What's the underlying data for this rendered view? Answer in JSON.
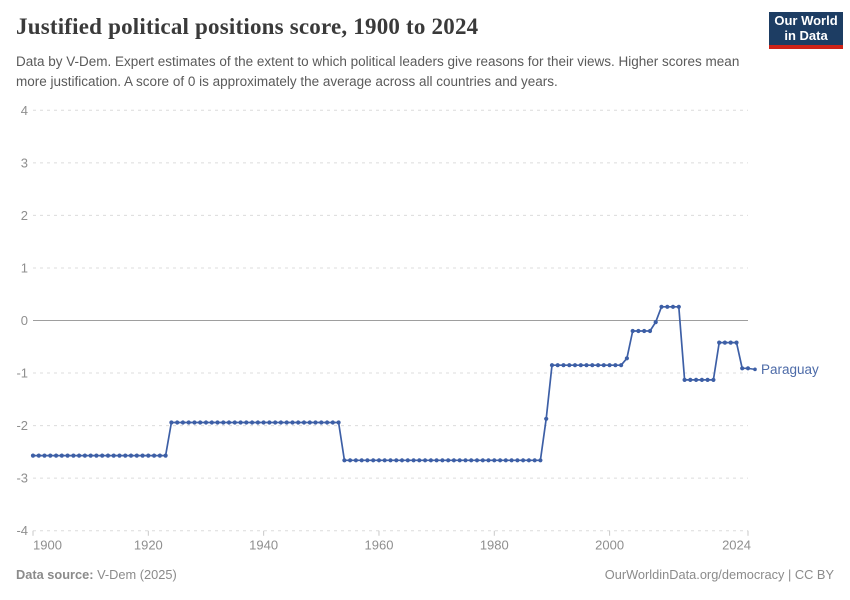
{
  "header": {
    "title": "Justified political positions score, 1900 to 2024",
    "subtitle": "Data by V-Dem. Expert estimates of the extent to which political leaders give reasons for their views. Higher scores mean more justification. A score of 0 is approximately the average across all countries and years.",
    "logo": {
      "line1": "Our World",
      "line2": "in Data",
      "bg_color": "#1d3d63",
      "accent_color": "#cf2318"
    }
  },
  "chart_data": {
    "type": "line",
    "title": "Justified political positions score, 1900 to 2024",
    "xlabel": "",
    "ylabel": "",
    "xlim": [
      1900,
      2024
    ],
    "ylim": [
      -4,
      4
    ],
    "x_start": 1900,
    "xticks": [
      1900,
      1920,
      1940,
      1960,
      1980,
      2000,
      2024
    ],
    "yticks": [
      4,
      3,
      2,
      1,
      0,
      -1,
      -2,
      -3,
      -4
    ],
    "grid": "horizontal dashed, solid zero line",
    "legend_position": "end-of-line label",
    "colors": {
      "line": "#3d5fa6",
      "entity_label": "#4d6ba8",
      "gridline": "#dcdcdc",
      "zero_line": "#9e9e9e",
      "axis_text": "#8f8f8f"
    },
    "series": [
      {
        "name": "Paraguay",
        "color": "#3d5fa6",
        "values": [
          -2.57,
          -2.57,
          -2.57,
          -2.57,
          -2.57,
          -2.57,
          -2.57,
          -2.57,
          -2.57,
          -2.57,
          -2.57,
          -2.57,
          -2.57,
          -2.57,
          -2.57,
          -2.57,
          -2.57,
          -2.57,
          -2.57,
          -2.57,
          -2.57,
          -2.57,
          -2.57,
          -2.57,
          -1.94,
          -1.94,
          -1.94,
          -1.94,
          -1.94,
          -1.94,
          -1.94,
          -1.94,
          -1.94,
          -1.94,
          -1.94,
          -1.94,
          -1.94,
          -1.94,
          -1.94,
          -1.94,
          -1.94,
          -1.94,
          -1.94,
          -1.94,
          -1.94,
          -1.94,
          -1.94,
          -1.94,
          -1.94,
          -1.94,
          -1.94,
          -1.94,
          -1.94,
          -1.94,
          -2.66,
          -2.66,
          -2.66,
          -2.66,
          -2.66,
          -2.66,
          -2.66,
          -2.66,
          -2.66,
          -2.66,
          -2.66,
          -2.66,
          -2.66,
          -2.66,
          -2.66,
          -2.66,
          -2.66,
          -2.66,
          -2.66,
          -2.66,
          -2.66,
          -2.66,
          -2.66,
          -2.66,
          -2.66,
          -2.66,
          -2.66,
          -2.66,
          -2.66,
          -2.66,
          -2.66,
          -2.66,
          -2.66,
          -2.66,
          -2.66,
          -1.87,
          -0.85,
          -0.85,
          -0.85,
          -0.85,
          -0.85,
          -0.85,
          -0.85,
          -0.85,
          -0.85,
          -0.85,
          -0.85,
          -0.85,
          -0.85,
          -0.72,
          -0.2,
          -0.2,
          -0.2,
          -0.2,
          -0.03,
          0.26,
          0.26,
          0.26,
          0.26,
          -1.13,
          -1.13,
          -1.13,
          -1.13,
          -1.13,
          -1.13,
          -0.42,
          -0.42,
          -0.42,
          -0.42,
          -0.91,
          -0.91
        ]
      }
    ]
  },
  "footer": {
    "source_label": "Data source:",
    "source_value": " V-Dem (2025)",
    "right_text": "OurWorldinData.org/democracy | CC BY"
  }
}
